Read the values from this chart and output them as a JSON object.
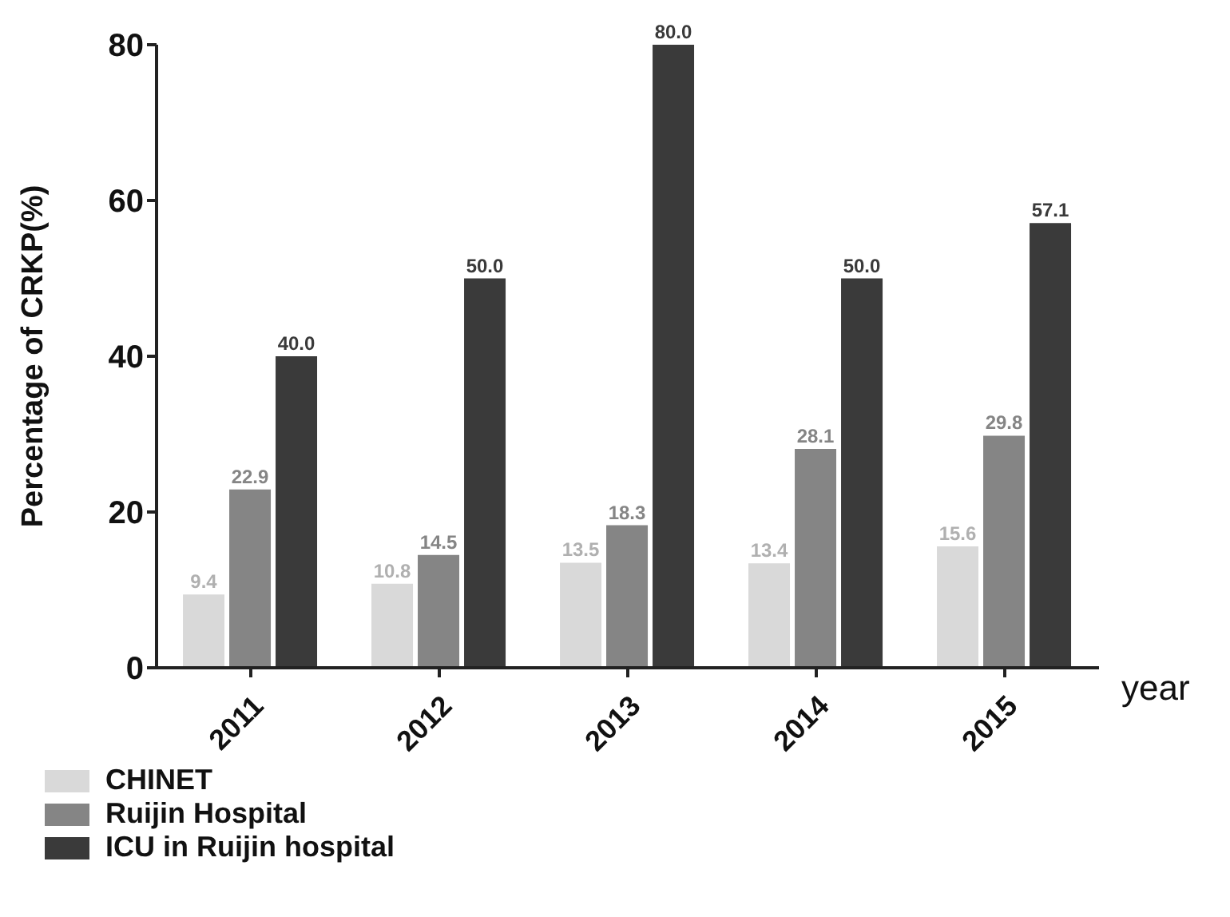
{
  "chart_data": {
    "type": "bar",
    "ylabel": "Percentage of CRKP(%)",
    "xlabel": "year",
    "categories": [
      "2011",
      "2012",
      "2013",
      "2014",
      "2015"
    ],
    "series": [
      {
        "name": "CHINET",
        "color": "#d9d9d9",
        "values": [
          9.4,
          10.8,
          13.5,
          13.4,
          15.6
        ],
        "value_labels": [
          "9.4",
          "10.8",
          "13.5",
          "13.4",
          "15.6"
        ]
      },
      {
        "name": "Ruijin Hospital",
        "color": "#858585",
        "values": [
          22.9,
          14.5,
          18.3,
          28.1,
          29.8
        ],
        "value_labels": [
          "22.9",
          "14.5",
          "18.3",
          "28.1",
          "29.8"
        ]
      },
      {
        "name": "ICU in Ruijin hospital",
        "color": "#3a3a3a",
        "values": [
          40.0,
          50.0,
          80.0,
          50.0,
          57.1
        ],
        "value_labels": [
          "40.0",
          "50.0",
          "80.0",
          "50.0",
          "57.1"
        ]
      }
    ],
    "ylim": [
      0,
      80
    ],
    "yticks": [
      0,
      20,
      40,
      60,
      80
    ],
    "grid": false,
    "legend": "bottom left"
  }
}
